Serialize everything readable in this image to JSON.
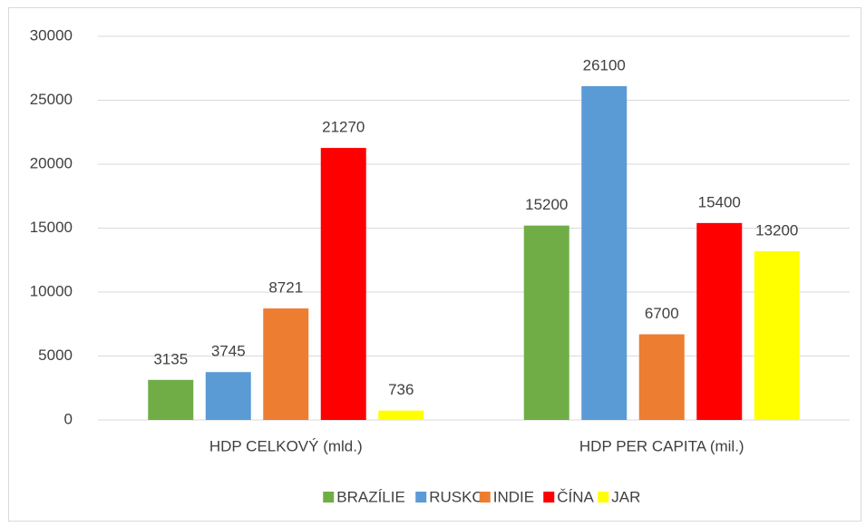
{
  "chart_data": {
    "type": "bar",
    "categories": [
      "HDP CELKOVÝ (mld.)",
      "HDP PER CAPITA (mil.)"
    ],
    "series": [
      {
        "name": "BRAZÍLIE",
        "color": "#70ad47",
        "values": [
          3135,
          15200
        ]
      },
      {
        "name": "RUSKO",
        "color": "#5b9bd5",
        "values": [
          3745,
          26100
        ]
      },
      {
        "name": "INDIE",
        "color": "#ed7d31",
        "values": [
          8721,
          6700
        ]
      },
      {
        "name": "ČÍNA",
        "color": "#ff0000",
        "values": [
          21270,
          15400
        ]
      },
      {
        "name": "JAR",
        "color": "#ffff00",
        "values": [
          736,
          13200
        ]
      }
    ],
    "ylim": [
      0,
      30000
    ],
    "yticks": [
      0,
      5000,
      10000,
      15000,
      20000,
      25000,
      30000
    ],
    "grid": true,
    "legend": "bottom"
  }
}
